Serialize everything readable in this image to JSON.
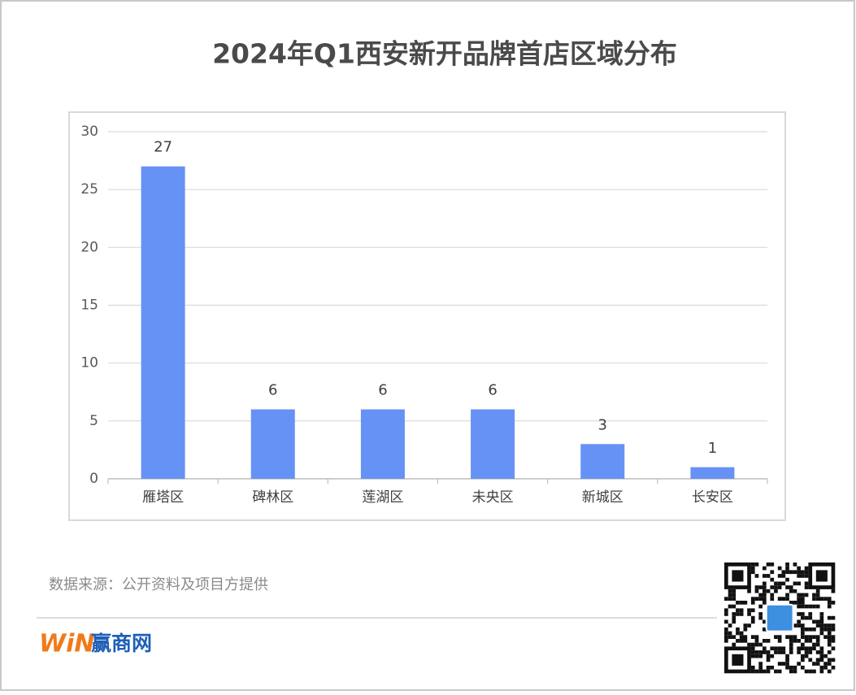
{
  "chart_data": {
    "type": "bar",
    "title": "2024年Q1西安新开品牌首店区域分布",
    "categories": [
      "雁塔区",
      "碑林区",
      "莲湖区",
      "未央区",
      "新城区",
      "长安区"
    ],
    "values": [
      27,
      6,
      6,
      6,
      3,
      1
    ],
    "color": "#6691f5",
    "ylim": [
      0,
      30
    ],
    "yticks": [
      0,
      5,
      10,
      15,
      20,
      25,
      30
    ],
    "grid": true
  },
  "footer": {
    "source": "数据来源：公开资料及项目方提供",
    "logo_mark": "WiN",
    "logo_text": "赢商网"
  }
}
